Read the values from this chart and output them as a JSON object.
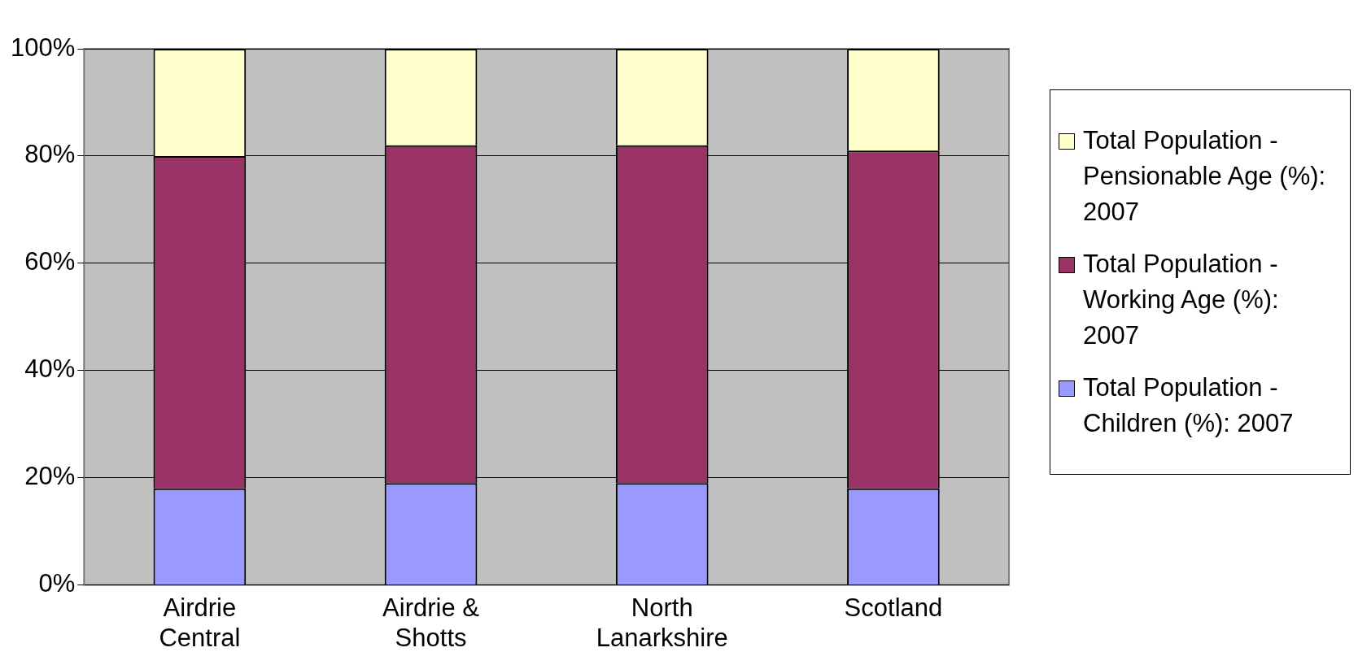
{
  "chart_data": {
    "type": "bar",
    "stacked": true,
    "categories": [
      "Airdrie Central",
      "Airdrie & Shotts",
      "North Lanarkshire",
      "Scotland"
    ],
    "series": [
      {
        "name": "Total Population - Children (%): 2007",
        "color": "#9999ff",
        "values": [
          18,
          19,
          19,
          18
        ]
      },
      {
        "name": "Total Population - Working Age (%): 2007",
        "color": "#993366",
        "values": [
          62,
          63,
          63,
          63
        ]
      },
      {
        "name": "Total Population - Pensionable Age (%): 2007",
        "color": "#ffffcc",
        "values": [
          20,
          18,
          18,
          19
        ]
      }
    ],
    "ylim": [
      0,
      100
    ],
    "yticks": [
      {
        "value": 0,
        "label": "0%"
      },
      {
        "value": 20,
        "label": "20%"
      },
      {
        "value": 40,
        "label": "40%"
      },
      {
        "value": 60,
        "label": "60%"
      },
      {
        "value": 80,
        "label": "80%"
      },
      {
        "value": 100,
        "label": "100%"
      }
    ],
    "grid": "y",
    "legend": "right"
  }
}
